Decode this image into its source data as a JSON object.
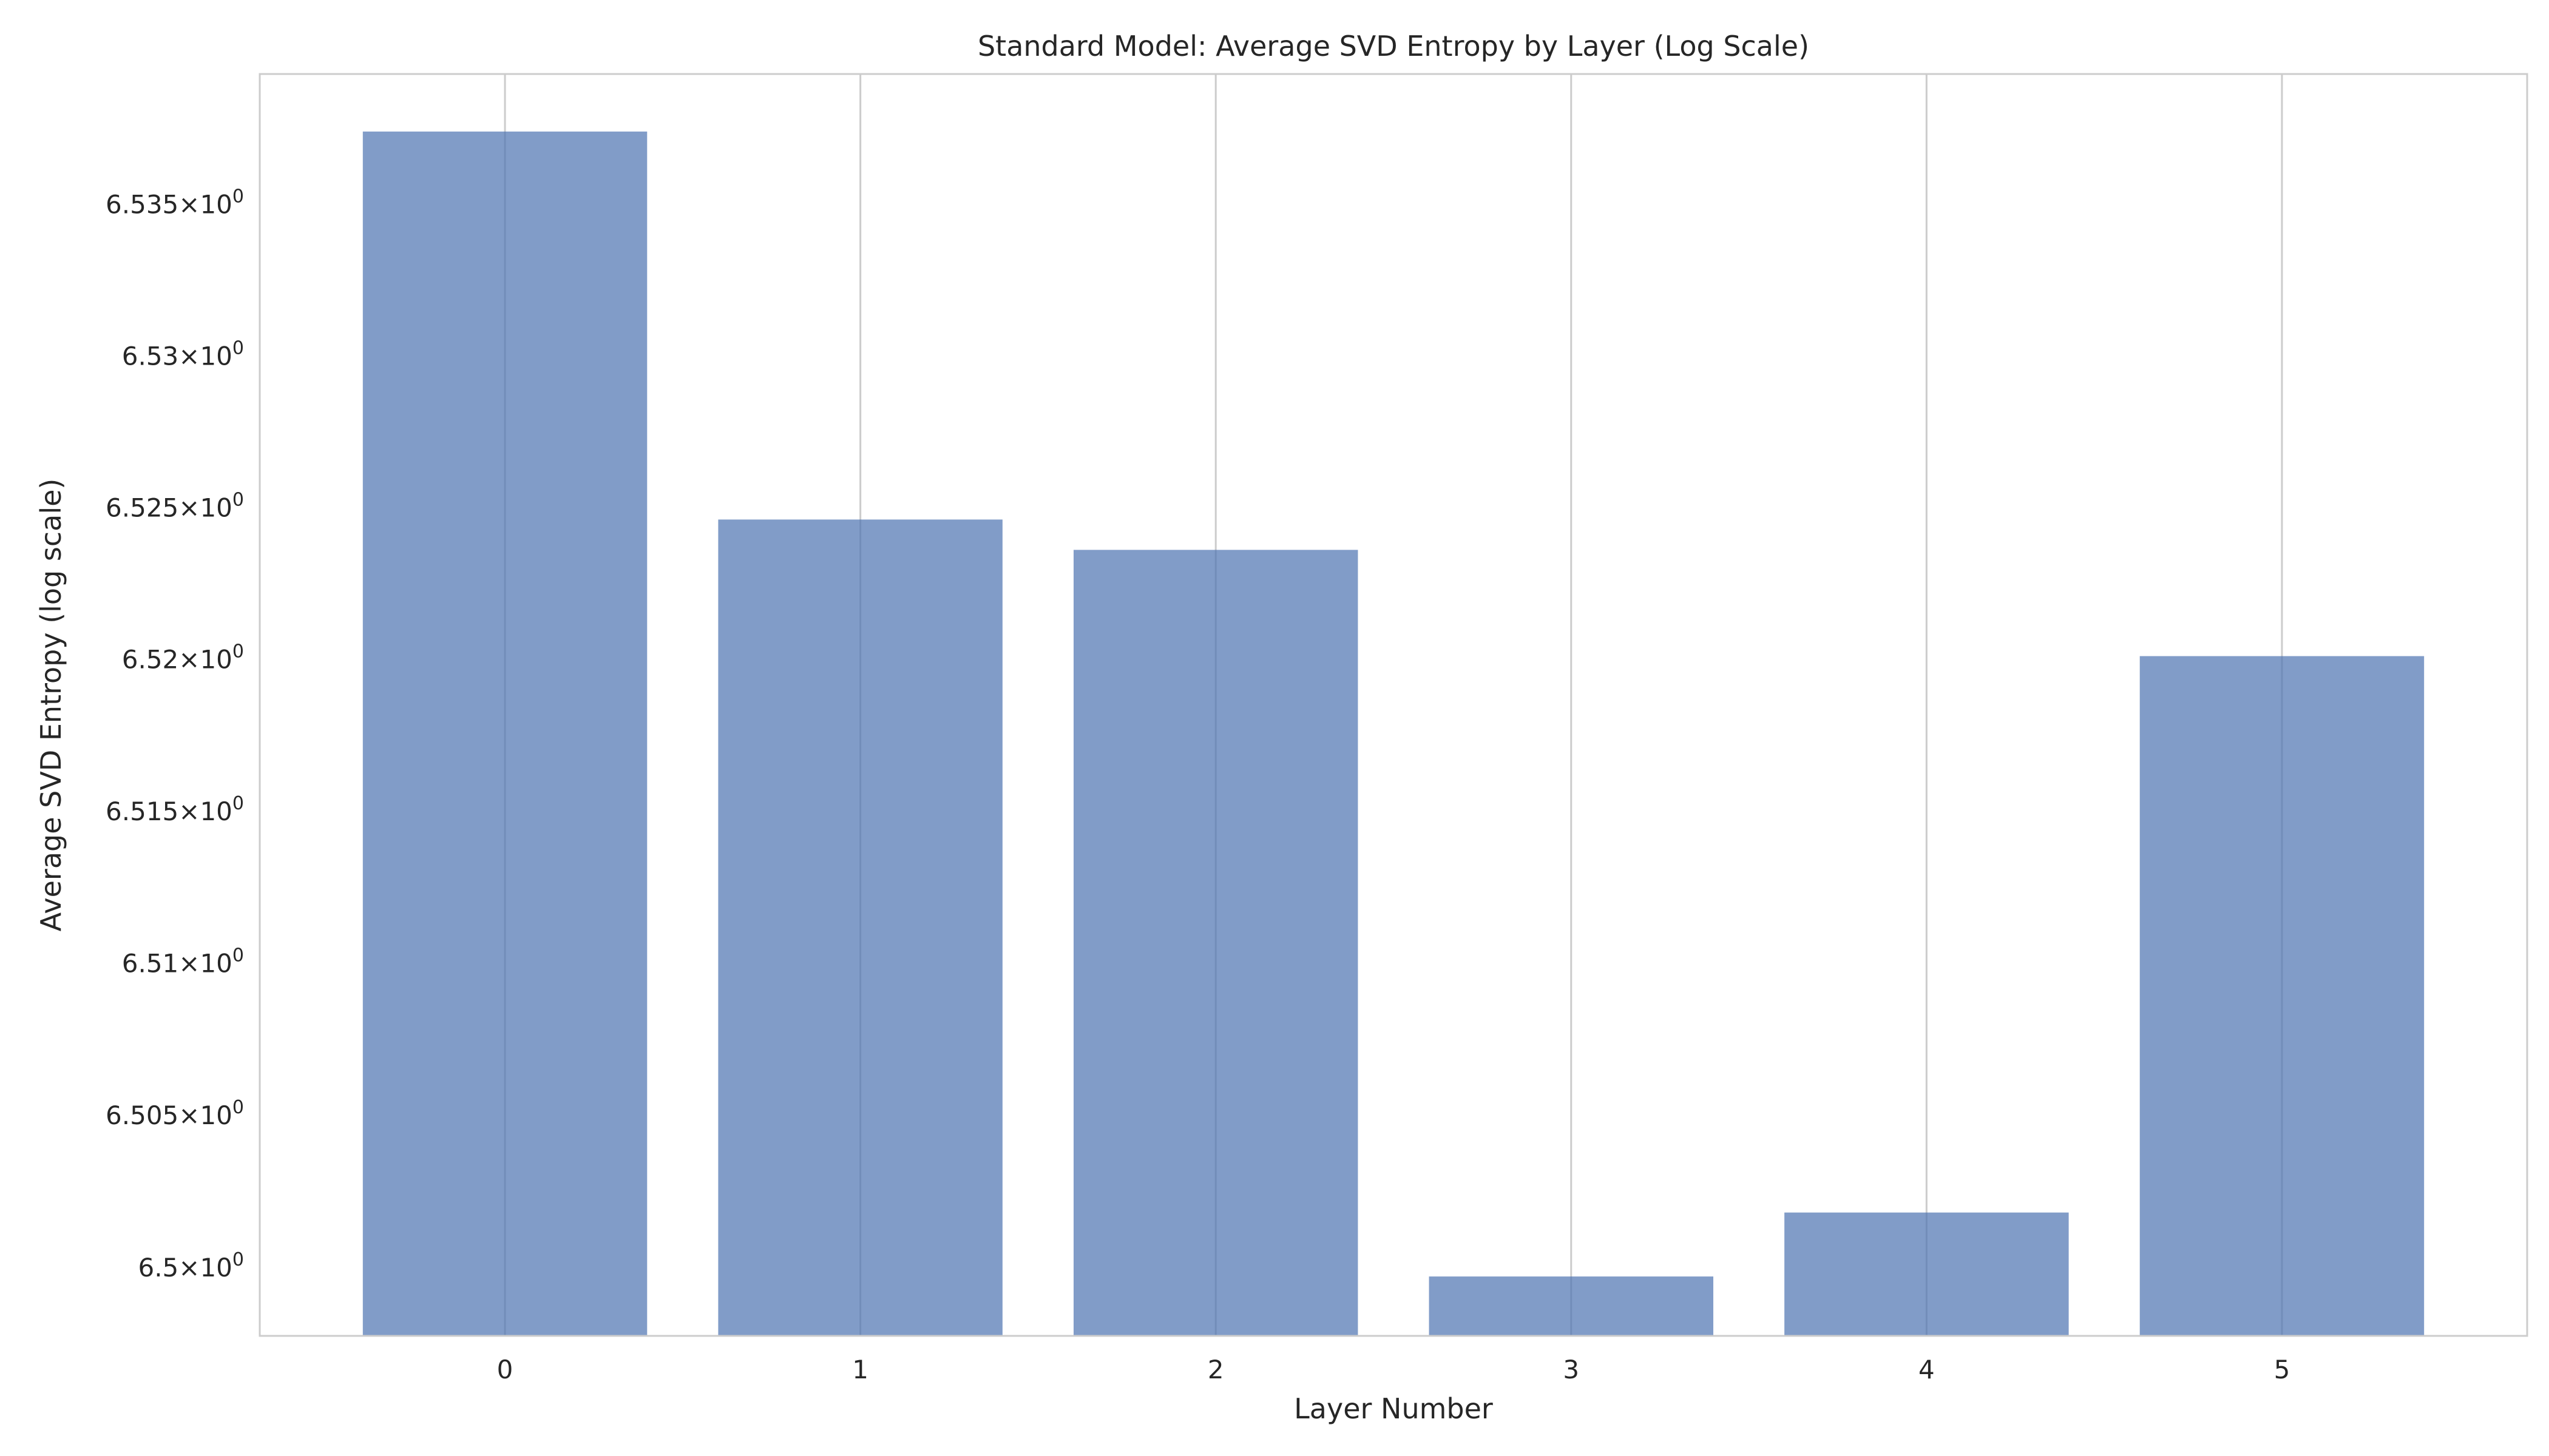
{
  "chart_data": {
    "type": "bar",
    "title": "Standard Model: Average SVD Entropy by Layer (Log Scale)",
    "xlabel": "Layer Number",
    "ylabel": "Average SVD Entropy (log scale)",
    "y_scale": "log",
    "categories": [
      "0",
      "1",
      "2",
      "3",
      "4",
      "5"
    ],
    "values": [
      6.5374,
      6.5246,
      6.5236,
      6.4997,
      6.5018,
      6.5201
    ],
    "ylim": [
      6.49775,
      6.5393
    ],
    "yticks": [
      6.5,
      6.505,
      6.51,
      6.515,
      6.52,
      6.525,
      6.53,
      6.535
    ],
    "ytick_mantissas": [
      "6.5",
      "6.505",
      "6.51",
      "6.515",
      "6.52",
      "6.525",
      "6.53",
      "6.535"
    ],
    "ytick_times": "×",
    "ytick_base": "10",
    "ytick_exponent": "0",
    "grid": "vertical",
    "colors": {
      "bar": "#4c72b0",
      "bar_opacity": 0.7,
      "grid": "#cccccc",
      "spine": "#cccccc",
      "text": "#262626"
    }
  }
}
